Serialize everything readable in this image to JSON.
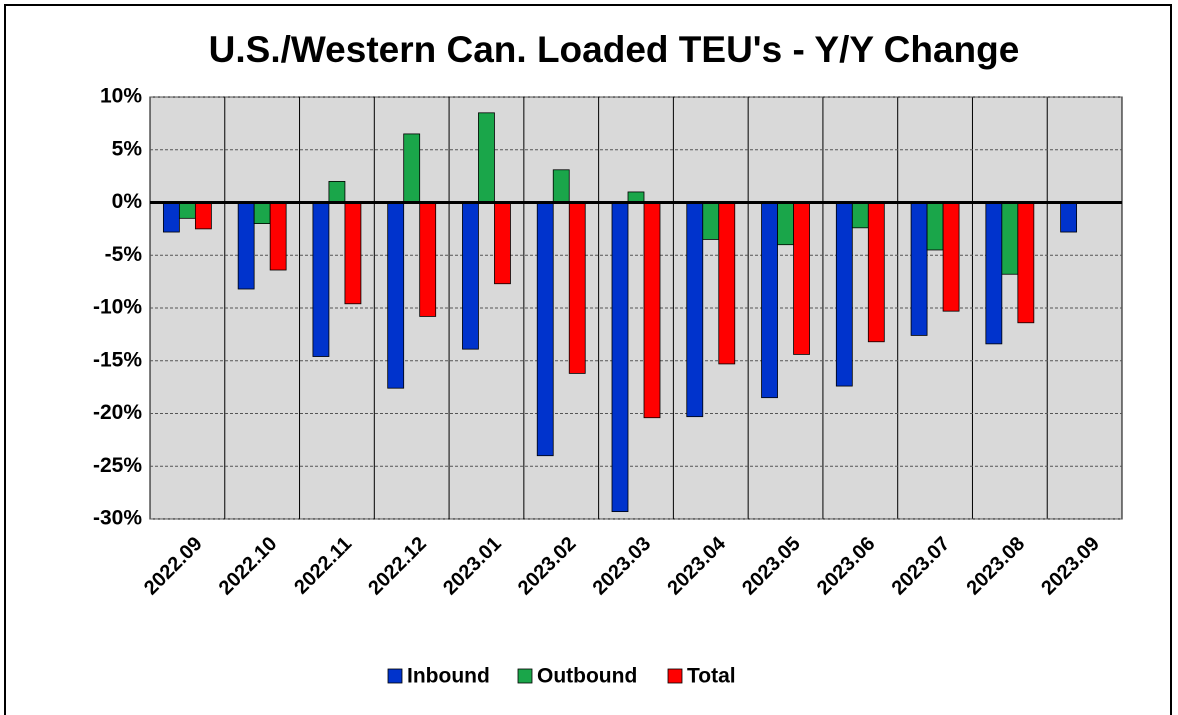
{
  "chart_data": {
    "type": "bar",
    "title": "U.S./Western Can. Loaded TEU's - Y/Y Change",
    "categories": [
      "2022.09",
      "2022.10",
      "2022.11",
      "2022.12",
      "2023.01",
      "2023.02",
      "2023.03",
      "2023.04",
      "2023.05",
      "2023.06",
      "2023.07",
      "2023.08",
      "2023.09"
    ],
    "series": [
      {
        "name": "Inbound",
        "color": "#0033cc",
        "values": [
          -2.8,
          -8.2,
          -14.6,
          -17.6,
          -13.9,
          -24.0,
          -29.3,
          -20.3,
          -18.5,
          -17.4,
          -12.6,
          -13.4,
          -2.8
        ]
      },
      {
        "name": "Outbound",
        "color": "#1aa64a",
        "values": [
          -1.5,
          -2.0,
          2.0,
          6.5,
          8.5,
          3.1,
          1.0,
          -3.5,
          -4.0,
          -2.4,
          -4.5,
          -6.8,
          null
        ]
      },
      {
        "name": "Total",
        "color": "#ff0000",
        "values": [
          -2.5,
          -6.4,
          -9.6,
          -10.8,
          -7.7,
          -16.2,
          -20.4,
          -15.3,
          -14.4,
          -13.2,
          -10.3,
          -11.4,
          null
        ]
      }
    ],
    "ylim": [
      -30,
      10
    ],
    "yticks": [
      {
        "value": 10,
        "label": "10%"
      },
      {
        "value": 5,
        "label": "5%"
      },
      {
        "value": 0,
        "label": "0%"
      },
      {
        "value": -5,
        "label": "-5%"
      },
      {
        "value": -10,
        "label": "-10%"
      },
      {
        "value": -15,
        "label": "-15%"
      },
      {
        "value": -20,
        "label": "-20%"
      },
      {
        "value": -25,
        "label": "-25%"
      },
      {
        "value": -30,
        "label": "-30%"
      }
    ],
    "grid": true,
    "legend": "bottom"
  }
}
